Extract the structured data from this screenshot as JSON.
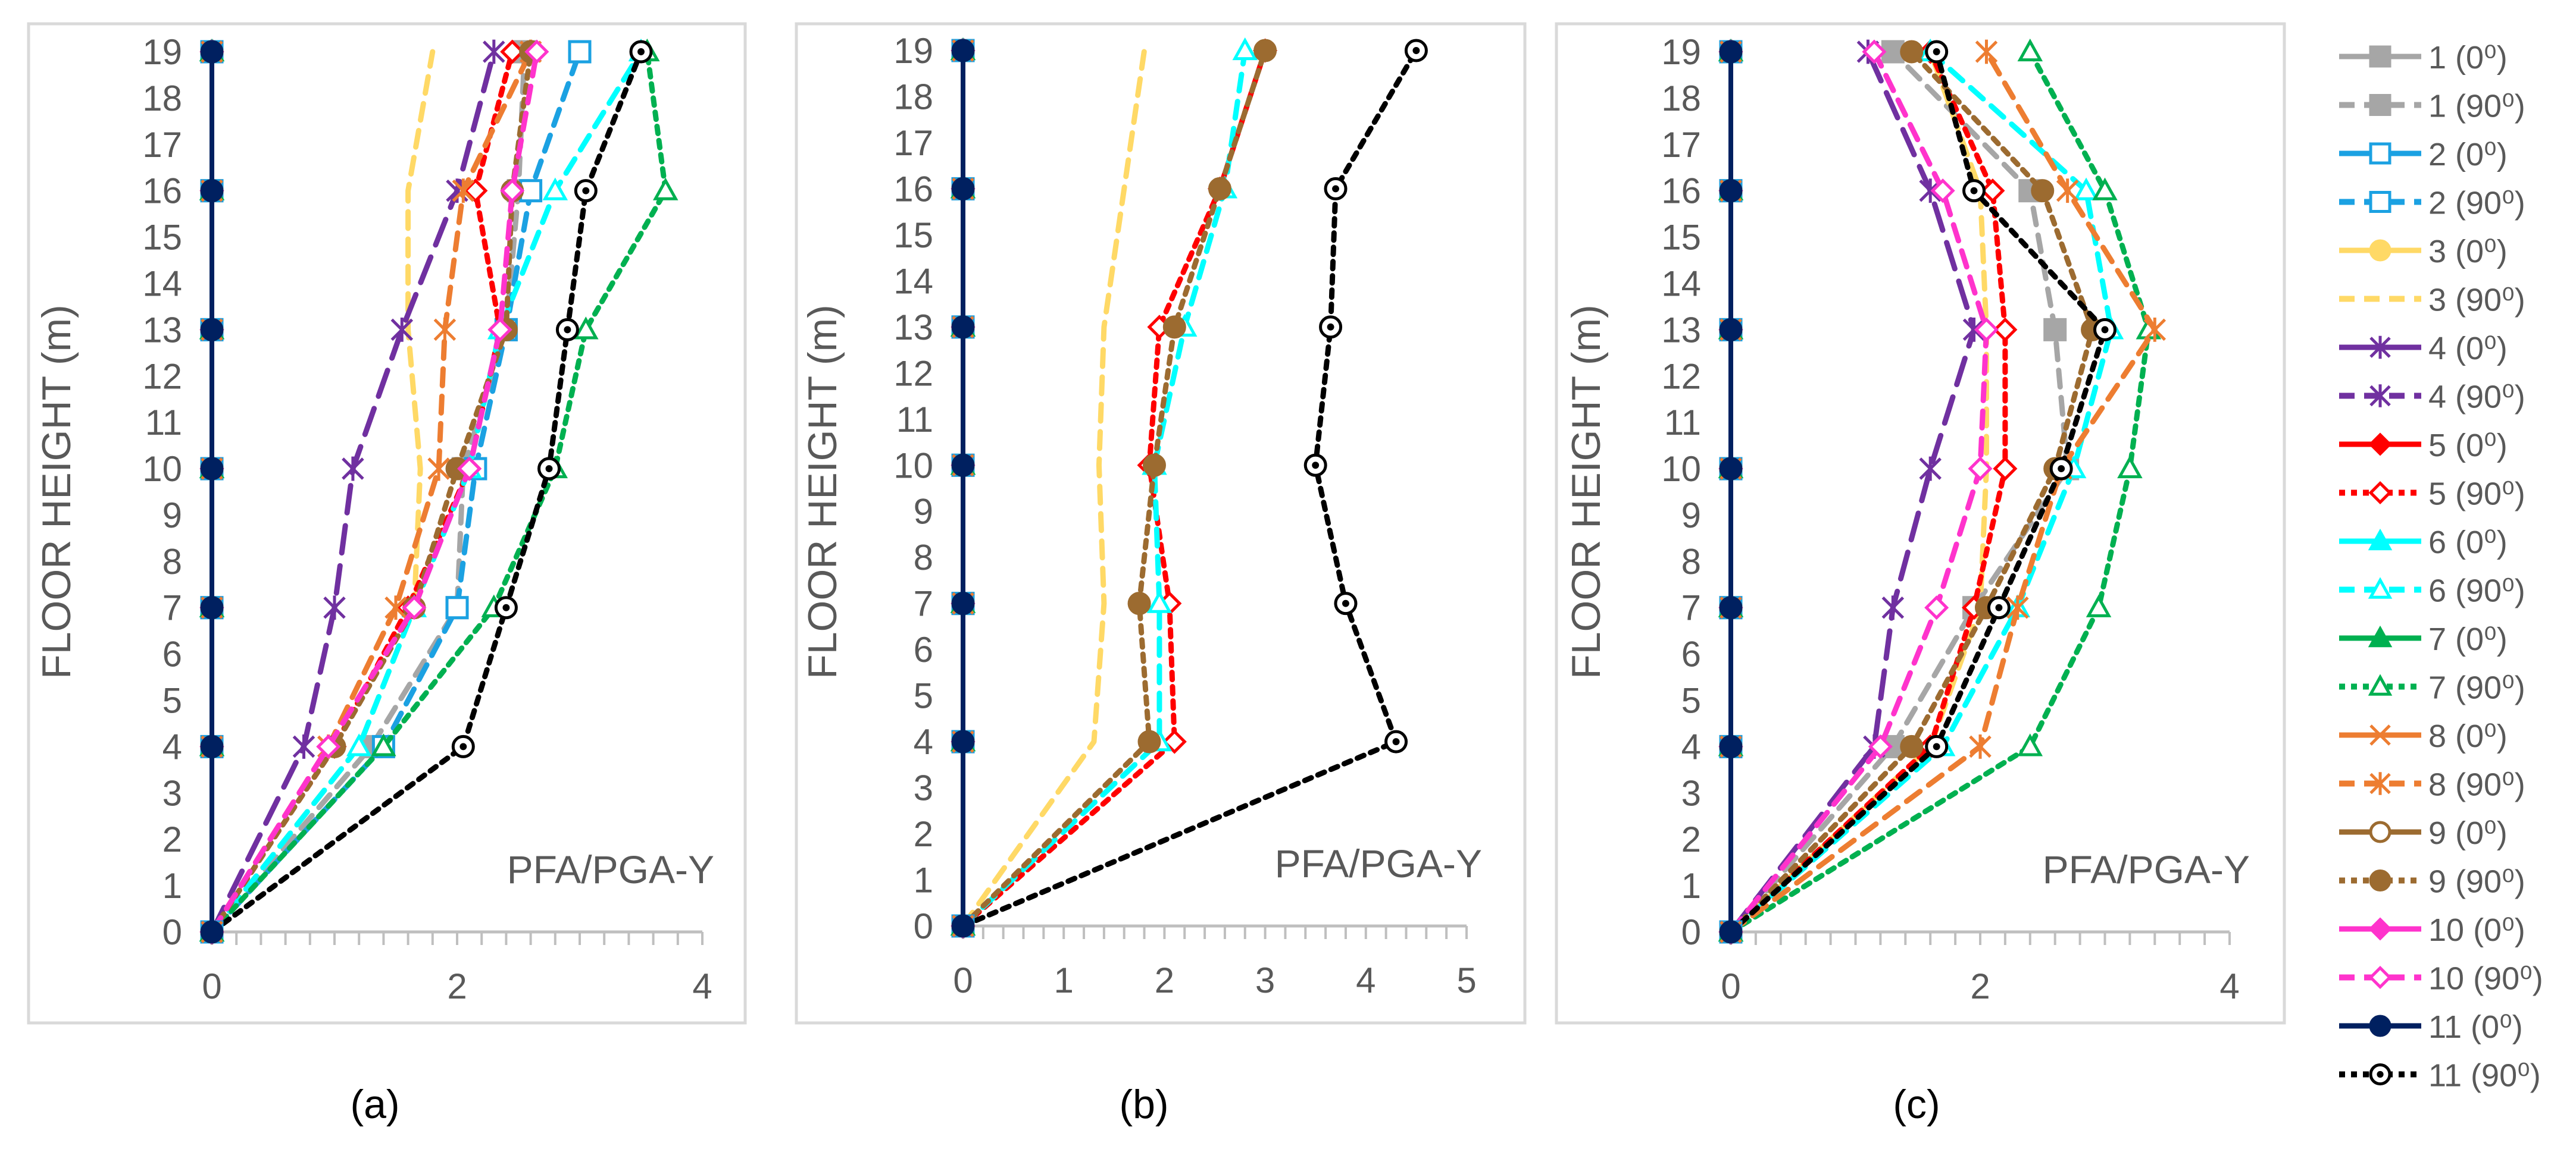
{
  "chart_data": {
    "legend": {
      "position": "right",
      "entries": [
        {
          "label": "1 (0⁰)",
          "color": "#A6A6A6",
          "dash": "solid",
          "marker": "square",
          "fill": true
        },
        {
          "label": "1 (90⁰)",
          "color": "#A6A6A6",
          "dash": "dash",
          "marker": "square",
          "fill": true
        },
        {
          "label": "2 (0⁰)",
          "color": "#1BA1E2",
          "dash": "solid",
          "marker": "square",
          "fill": false
        },
        {
          "label": "2 (90⁰)",
          "color": "#1BA1E2",
          "dash": "dash",
          "marker": "square",
          "fill": false
        },
        {
          "label": "3 (0⁰)",
          "color": "#FFD966",
          "dash": "solid",
          "marker": "circle",
          "fill": true
        },
        {
          "label": "3 (90⁰)",
          "color": "#FFD966",
          "dash": "dash",
          "marker": "none",
          "fill": true
        },
        {
          "label": "4 (0⁰)",
          "color": "#7030A0",
          "dash": "solid",
          "marker": "star",
          "fill": true
        },
        {
          "label": "4 (90⁰)",
          "color": "#7030A0",
          "dash": "longdash",
          "marker": "star",
          "fill": true
        },
        {
          "label": "5 (0⁰)",
          "color": "#FF0000",
          "dash": "solid",
          "marker": "diamond",
          "fill": true
        },
        {
          "label": "5 (90⁰)",
          "color": "#FF0000",
          "dash": "dot",
          "marker": "diamond",
          "fill": false
        },
        {
          "label": "6 (0⁰)",
          "color": "#00FFFF",
          "dash": "solid",
          "marker": "triangle",
          "fill": true
        },
        {
          "label": "6 (90⁰)",
          "color": "#00FFFF",
          "dash": "dash",
          "marker": "triangle",
          "fill": false
        },
        {
          "label": "7 (0⁰)",
          "color": "#00B050",
          "dash": "solid",
          "marker": "triangle",
          "fill": true
        },
        {
          "label": "7 (90⁰)",
          "color": "#00B050",
          "dash": "dot",
          "marker": "triangle",
          "fill": false
        },
        {
          "label": "8 (0⁰)",
          "color": "#ED7D31",
          "dash": "solid",
          "marker": "x",
          "fill": true
        },
        {
          "label": "8 (90⁰)",
          "color": "#ED7D31",
          "dash": "dash",
          "marker": "star",
          "fill": true
        },
        {
          "label": "9 (0⁰)",
          "color": "#9C6B30",
          "dash": "solid",
          "marker": "circle",
          "fill": false
        },
        {
          "label": "9 (90⁰)",
          "color": "#9C6B30",
          "dash": "dot",
          "marker": "circle",
          "fill": true
        },
        {
          "label": "10 (0⁰)",
          "color": "#FF33CC",
          "dash": "solid",
          "marker": "diamond",
          "fill": true
        },
        {
          "label": "10 (90⁰)",
          "color": "#FF33CC",
          "dash": "dash",
          "marker": "diamond",
          "fill": false
        },
        {
          "label": "11 (0⁰)",
          "color": "#002060",
          "dash": "solid",
          "marker": "circle",
          "fill": true
        },
        {
          "label": "11 (90⁰)",
          "color": "#000000",
          "dash": "dot",
          "marker": "circle-dot",
          "fill": false
        }
      ]
    },
    "panels": [
      {
        "label": "(a)",
        "type": "line",
        "annotation": "PFA/PGA-Y",
        "ylabel": "FLOOR HEIGHT (m)",
        "xlim": [
          0,
          4
        ],
        "xticks": [
          0,
          2,
          4
        ],
        "xminor": 0.2,
        "ylim": [
          0,
          19
        ],
        "yticks": [
          0,
          1,
          2,
          3,
          4,
          5,
          6,
          7,
          8,
          9,
          10,
          11,
          12,
          13,
          14,
          15,
          16,
          17,
          18,
          19
        ],
        "grid": false,
        "y": [
          0,
          4,
          7,
          10,
          13,
          16,
          19
        ],
        "series": [
          {
            "key": "1 (0⁰)",
            "x": [
              0,
              0,
              0,
              0,
              0,
              0,
              0
            ]
          },
          {
            "key": "1 (90⁰)",
            "x": [
              0,
              1.3,
              2.0,
              2.05,
              2.4,
              2.5,
              2.55
            ]
          },
          {
            "key": "2 (0⁰)",
            "x": [
              0,
              0,
              0,
              0,
              0,
              0,
              0
            ]
          },
          {
            "key": "2 (90⁰)",
            "x": [
              0,
              1.4,
              2.0,
              2.15,
              2.4,
              2.6,
              3.0
            ]
          },
          {
            "key": "3 (0⁰)",
            "x": [
              0,
              0,
              0,
              0,
              0,
              0,
              0
            ]
          },
          {
            "key": "3 (90⁰)",
            "x": [
              0,
              1.2,
              1.65,
              1.7,
              1.6,
              1.6,
              1.8
            ]
          },
          {
            "key": "4 (0⁰)",
            "x": [
              0,
              0,
              0,
              0,
              0,
              0,
              0
            ]
          },
          {
            "key": "4 (90⁰)",
            "x": [
              0,
              0.75,
              1.0,
              1.15,
              1.55,
              2.0,
              2.3
            ]
          },
          {
            "key": "5 (0⁰)",
            "x": [
              0,
              0,
              0,
              0,
              0,
              0,
              0
            ]
          },
          {
            "key": "5 (90⁰)",
            "x": [
              0,
              1.0,
              1.6,
              2.1,
              2.35,
              2.15,
              2.45
            ]
          },
          {
            "key": "6 (0⁰)",
            "x": [
              0,
              0,
              0,
              0,
              0,
              0,
              0
            ]
          },
          {
            "key": "6 (90⁰)",
            "x": [
              0,
              1.2,
              1.65,
              2.1,
              2.35,
              2.8,
              3.5
            ]
          },
          {
            "key": "7 (0⁰)",
            "x": [
              0,
              0,
              0,
              0,
              0,
              0,
              0
            ]
          },
          {
            "key": "7 (90⁰)",
            "x": [
              0,
              1.4,
              2.3,
              2.8,
              3.05,
              3.7,
              3.55
            ]
          },
          {
            "key": "8 (0⁰)",
            "x": [
              0,
              0,
              0,
              0,
              0,
              0,
              0
            ]
          },
          {
            "key": "8 (90⁰)",
            "x": [
              0,
              0.95,
              1.5,
              1.85,
              1.9,
              2.05,
              2.6
            ]
          },
          {
            "key": "9 (0⁰)",
            "x": [
              0,
              0,
              0,
              0,
              0,
              0,
              0
            ]
          },
          {
            "key": "9 (90⁰)",
            "x": [
              0,
              1.0,
              1.65,
              2.0,
              2.4,
              2.45,
              2.6
            ]
          },
          {
            "key": "10 (0⁰)",
            "x": [
              0,
              0,
              0,
              0,
              0,
              0,
              0
            ]
          },
          {
            "key": "10 (90⁰)",
            "x": [
              0,
              0.95,
              1.65,
              2.1,
              2.35,
              2.45,
              2.65
            ]
          },
          {
            "key": "11 (0⁰)",
            "x": [
              0,
              0,
              0,
              0,
              0,
              0,
              0
            ]
          },
          {
            "key": "11 (90⁰)",
            "x": [
              0,
              2.05,
              2.4,
              2.75,
              2.9,
              3.05,
              3.5
            ]
          }
        ]
      },
      {
        "label": "(b)",
        "type": "line",
        "annotation": "PFA/PGA-Y",
        "ylabel": "FLOOR HEIGHT (m)",
        "xlim": [
          0,
          5
        ],
        "xticks": [
          0,
          1,
          2,
          3,
          4,
          5
        ],
        "xminor": 0.2,
        "ylim": [
          0,
          19
        ],
        "yticks": [
          0,
          1,
          2,
          3,
          4,
          5,
          6,
          7,
          8,
          9,
          10,
          11,
          12,
          13,
          14,
          15,
          16,
          17,
          18,
          19
        ],
        "grid": false,
        "y": [
          0,
          4,
          7,
          10,
          13,
          16,
          19
        ],
        "series": [
          {
            "key": "1 (0⁰)",
            "x": [
              0,
              0,
              0,
              0,
              0,
              0,
              0
            ]
          },
          {
            "key": "2 (0⁰)",
            "x": [
              0,
              0,
              0,
              0,
              0,
              0,
              0
            ]
          },
          {
            "key": "3 (0⁰)",
            "x": [
              0,
              0,
              0,
              0,
              0,
              0,
              0
            ]
          },
          {
            "key": "3 (90⁰)",
            "x": [
              0,
              1.3,
              1.4,
              1.35,
              1.4,
              1.6,
              1.8
            ]
          },
          {
            "key": "4 (0⁰)",
            "x": [
              0,
              0,
              0,
              0,
              0,
              0,
              0
            ]
          },
          {
            "key": "5 (0⁰)",
            "x": [
              0,
              0,
              0,
              0,
              0,
              0,
              0
            ]
          },
          {
            "key": "5 (90⁰)",
            "x": [
              0,
              2.1,
              2.05,
              1.85,
              1.95,
              2.55,
              3.0
            ]
          },
          {
            "key": "6 (0⁰)",
            "x": [
              0,
              0,
              0,
              0,
              0,
              0,
              0
            ]
          },
          {
            "key": "6 (90⁰)",
            "x": [
              0,
              1.95,
              1.95,
              1.9,
              2.2,
              2.6,
              2.8
            ]
          },
          {
            "key": "7 (0⁰)",
            "x": [
              0,
              0,
              0,
              0,
              0,
              0,
              0
            ]
          },
          {
            "key": "8 (0⁰)",
            "x": [
              0,
              0,
              0,
              0,
              0,
              0,
              0
            ]
          },
          {
            "key": "9 (0⁰)",
            "x": [
              0,
              0,
              0,
              0,
              0,
              0,
              0
            ]
          },
          {
            "key": "9 (90⁰)",
            "x": [
              0,
              1.85,
              1.75,
              1.9,
              2.1,
              2.55,
              3.0
            ]
          },
          {
            "key": "10 (0⁰)",
            "x": [
              0,
              0,
              0,
              0,
              0,
              0,
              0
            ]
          },
          {
            "key": "11 (0⁰)",
            "x": [
              0,
              0,
              0,
              0,
              0,
              0,
              0
            ]
          },
          {
            "key": "11 (90⁰)",
            "x": [
              0,
              4.3,
              3.8,
              3.5,
              3.65,
              3.7,
              4.5
            ]
          }
        ]
      },
      {
        "label": "(c)",
        "type": "line",
        "annotation": "PFA/PGA-Y",
        "ylabel": "FLOOR HEIGHT (m)",
        "xlim": [
          0,
          4
        ],
        "xticks": [
          0,
          2,
          4
        ],
        "xminor": 0.2,
        "ylim": [
          0,
          19
        ],
        "yticks": [
          0,
          1,
          2,
          3,
          4,
          5,
          6,
          7,
          8,
          9,
          10,
          11,
          12,
          13,
          14,
          15,
          16,
          17,
          18,
          19
        ],
        "grid": false,
        "y": [
          0,
          4,
          7,
          10,
          13,
          16,
          19
        ],
        "series": [
          {
            "key": "1 (0⁰)",
            "x": [
              0,
              0,
              0,
              0,
              0,
              0,
              0
            ]
          },
          {
            "key": "1 (90⁰)",
            "x": [
              0,
              1.3,
              1.95,
              2.7,
              2.6,
              2.4,
              1.3
            ]
          },
          {
            "key": "2 (0⁰)",
            "x": [
              0,
              0,
              0,
              0,
              0,
              0,
              0
            ]
          },
          {
            "key": "3 (0⁰)",
            "x": [
              0,
              0,
              0,
              0,
              0,
              0,
              0
            ]
          },
          {
            "key": "3 (90⁰)",
            "x": [
              0,
              1.6,
              2.0,
              2.05,
              2.05,
              2.0,
              1.6
            ]
          },
          {
            "key": "4 (0⁰)",
            "x": [
              0,
              0,
              0,
              0,
              0,
              0,
              0
            ]
          },
          {
            "key": "4 (90⁰)",
            "x": [
              0,
              1.15,
              1.3,
              1.6,
              1.95,
              1.6,
              1.1
            ]
          },
          {
            "key": "5 (0⁰)",
            "x": [
              0,
              0,
              0,
              0,
              0,
              0,
              0
            ]
          },
          {
            "key": "5 (90⁰)",
            "x": [
              0,
              1.6,
              1.95,
              2.2,
              2.2,
              2.1,
              1.6
            ]
          },
          {
            "key": "6 (0⁰)",
            "x": [
              0,
              0,
              0,
              0,
              0,
              0,
              0
            ]
          },
          {
            "key": "6 (90⁰)",
            "x": [
              0,
              1.7,
              2.3,
              2.75,
              3.05,
              2.85,
              1.6
            ]
          },
          {
            "key": "7 (0⁰)",
            "x": [
              0,
              0,
              0,
              0,
              0,
              0,
              0
            ]
          },
          {
            "key": "7 (90⁰)",
            "x": [
              0,
              2.4,
              2.95,
              3.2,
              3.35,
              3.0,
              2.4
            ]
          },
          {
            "key": "8 (0⁰)",
            "x": [
              0,
              0,
              0,
              0,
              0,
              0,
              0
            ]
          },
          {
            "key": "8 (90⁰)",
            "x": [
              0,
              2.0,
              2.3,
              2.65,
              3.4,
              2.7,
              2.05
            ]
          },
          {
            "key": "9 (0⁰)",
            "x": [
              0,
              0,
              0,
              0,
              0,
              0,
              0
            ]
          },
          {
            "key": "9 (90⁰)",
            "x": [
              0,
              1.45,
              2.05,
              2.6,
              2.9,
              2.5,
              1.45
            ]
          },
          {
            "key": "10 (0⁰)",
            "x": [
              0,
              0,
              0,
              0,
              0,
              0,
              0
            ]
          },
          {
            "key": "10 (90⁰)",
            "x": [
              0,
              1.2,
              1.65,
              2.0,
              2.05,
              1.7,
              1.15
            ]
          },
          {
            "key": "11 (0⁰)",
            "x": [
              0,
              0,
              0,
              0,
              0,
              0,
              0
            ]
          },
          {
            "key": "11 (90⁰)",
            "x": [
              0,
              1.65,
              2.15,
              2.65,
              3.0,
              1.95,
              1.65
            ]
          }
        ]
      }
    ]
  }
}
